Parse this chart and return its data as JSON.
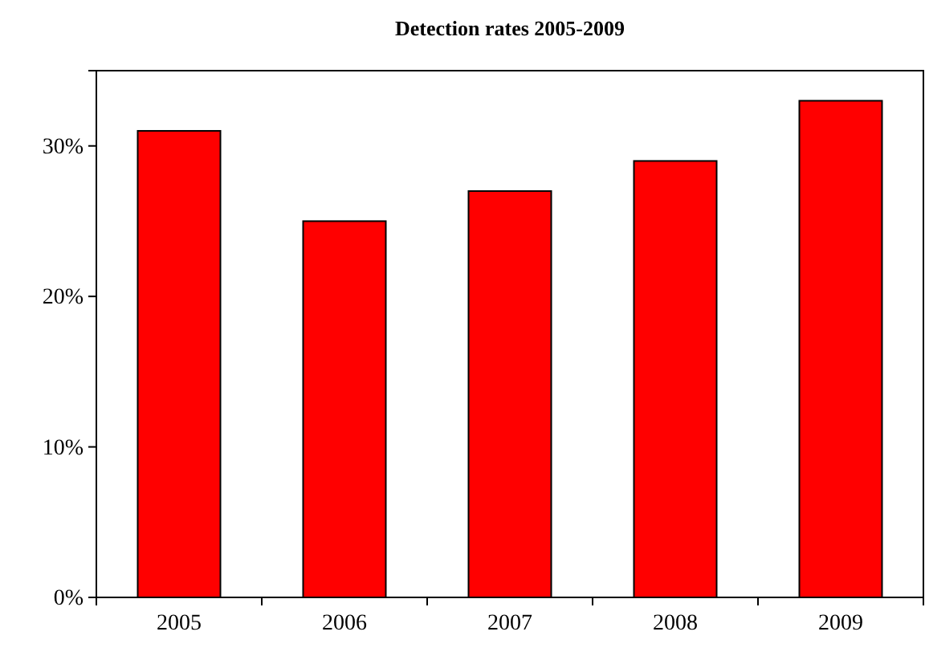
{
  "chart_data": {
    "type": "bar",
    "title": "Detection rates 2005-2009",
    "categories": [
      "2005",
      "2006",
      "2007",
      "2008",
      "2009"
    ],
    "values": [
      31,
      25,
      27,
      29,
      33
    ],
    "color": "#ff0000",
    "ylim": [
      0,
      35
    ],
    "yticks": [
      {
        "value": 0,
        "label": "0%"
      },
      {
        "value": 10,
        "label": "10%"
      },
      {
        "value": 20,
        "label": "20%"
      },
      {
        "value": 30,
        "label": "30%"
      }
    ],
    "grid": false
  }
}
